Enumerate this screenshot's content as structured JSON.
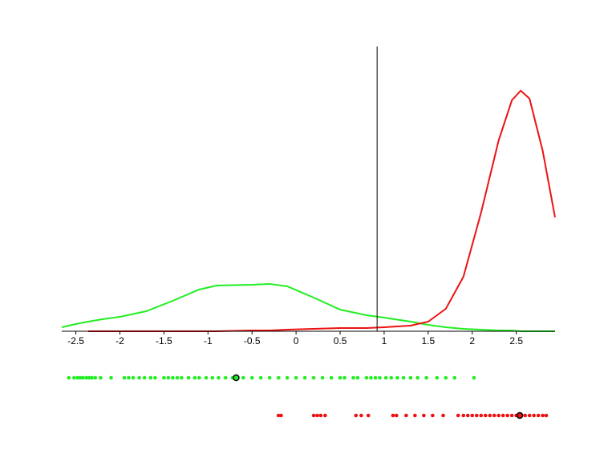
{
  "chart_data": {
    "type": "line",
    "x": [
      -2.66,
      -2.5,
      -2.36,
      -2.2,
      -2,
      -1.7,
      -1.4,
      -1.1,
      -0.9,
      -0.5,
      -0.3,
      -0.1,
      0.2,
      0.5,
      0.8,
      1,
      1.3,
      1.5,
      1.7,
      1.9,
      2.1,
      2.3,
      2.45,
      2.55,
      2.65,
      2.8,
      2.94
    ],
    "series": [
      {
        "color": "#22ee22",
        "values": [
          5,
          9,
          12,
          15,
          18,
          25,
          38,
          52,
          57,
          58,
          59,
          56,
          42,
          27,
          20,
          17,
          12,
          8,
          5,
          3,
          2,
          1,
          1,
          0,
          0,
          0,
          0
        ]
      },
      {
        "color": "#ee1111",
        "values": [
          null,
          null,
          0,
          0,
          0,
          0,
          0,
          0,
          0,
          1,
          1,
          2,
          3,
          4,
          4,
          5,
          7,
          12,
          28,
          68,
          148,
          238,
          288,
          300,
          290,
          225,
          142
        ]
      }
    ],
    "xlim": [
      -2.66,
      2.94
    ],
    "ylim": [
      0,
      355
    ],
    "xticks": [
      -2.5,
      -2,
      -1.5,
      -1,
      -0.5,
      0,
      0.5,
      1,
      1.5,
      2,
      2.5
    ],
    "vline": 0.92,
    "strips": [
      {
        "color": "#22ee22",
        "marker": -0.68,
        "x": [
          -2.58,
          -2.52,
          -2.48,
          -2.45,
          -2.42,
          -2.38,
          -2.35,
          -2.32,
          -2.28,
          -2.22,
          -2.1,
          -1.95,
          -1.9,
          -1.85,
          -1.78,
          -1.72,
          -1.65,
          -1.6,
          -1.5,
          -1.45,
          -1.4,
          -1.35,
          -1.3,
          -1.22,
          -1.15,
          -1.1,
          -1.02,
          -0.95,
          -0.88,
          -0.8,
          -0.72,
          -0.6,
          -0.5,
          -0.4,
          -0.3,
          -0.2,
          -0.1,
          0,
          0.1,
          0.2,
          0.3,
          0.4,
          0.5,
          0.55,
          0.65,
          0.7,
          0.8,
          0.85,
          0.9,
          0.95,
          1.02,
          1.08,
          1.15,
          1.22,
          1.3,
          1.38,
          1.48,
          1.6,
          1.7,
          1.8,
          2.02
        ]
      },
      {
        "color": "#ee1111",
        "marker": 2.54,
        "x": [
          -0.2,
          -0.17,
          0.2,
          0.24,
          0.28,
          0.33,
          0.68,
          0.74,
          0.82,
          1.1,
          1.14,
          1.25,
          1.35,
          1.45,
          1.55,
          1.67,
          1.84,
          1.9,
          1.95,
          2.0,
          2.05,
          2.1,
          2.15,
          2.2,
          2.25,
          2.3,
          2.35,
          2.4,
          2.45,
          2.5,
          2.55,
          2.6,
          2.65,
          2.7,
          2.75,
          2.8,
          2.84
        ]
      }
    ]
  }
}
